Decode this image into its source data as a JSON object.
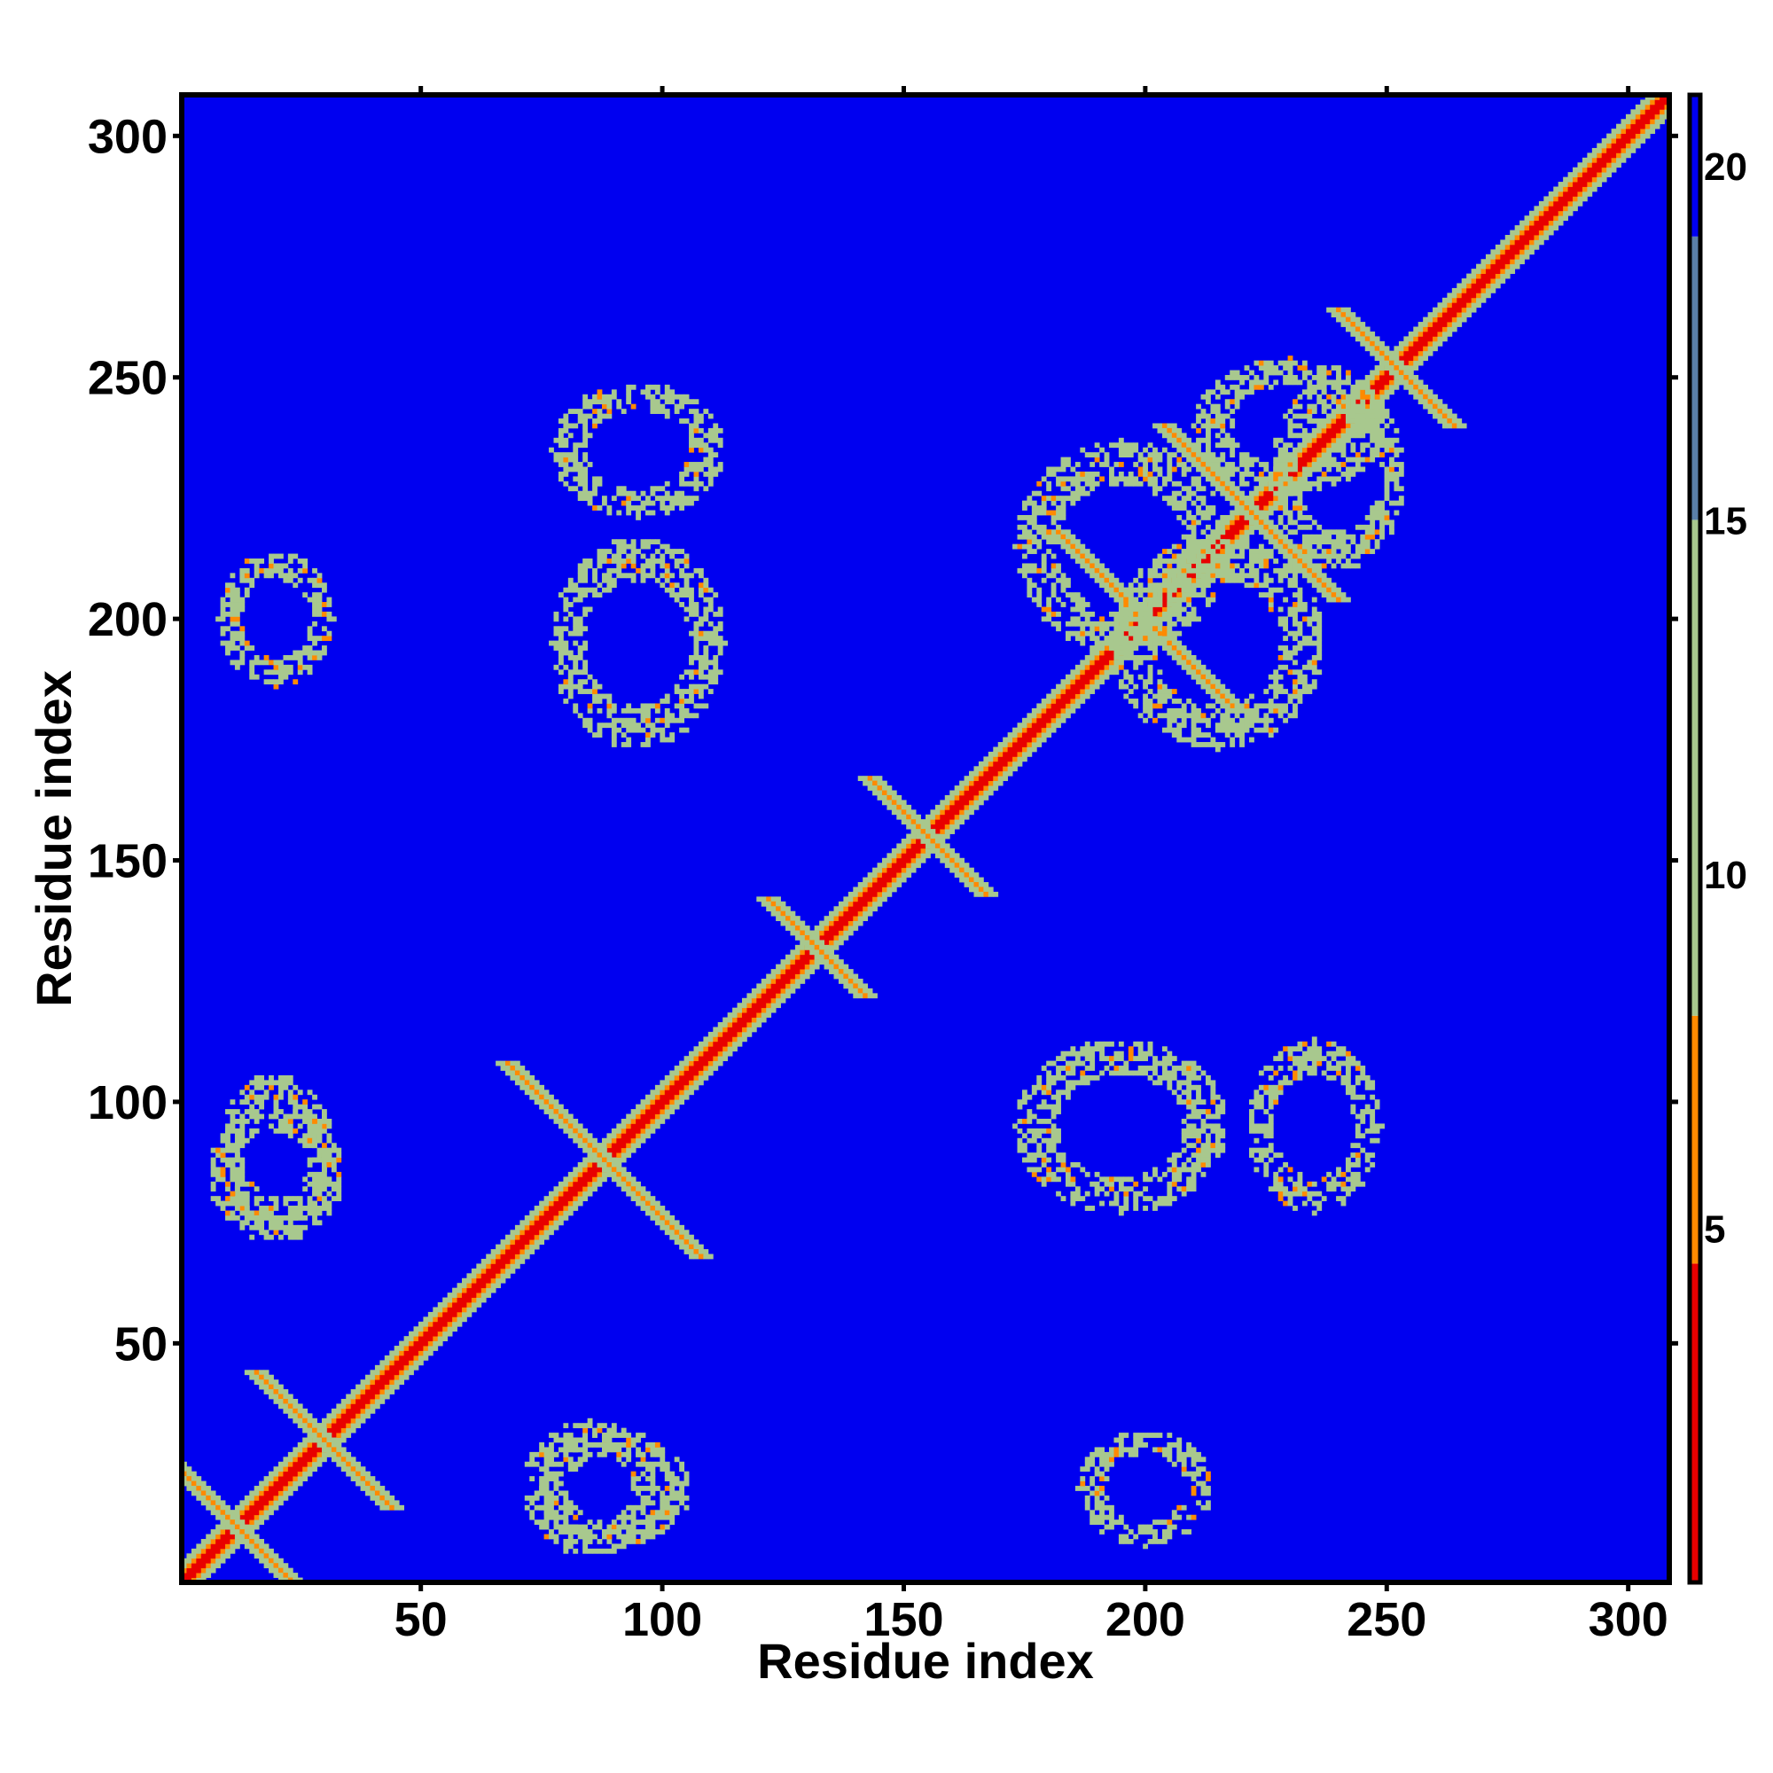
{
  "chart_data": {
    "type": "heatmap",
    "title": "",
    "xlabel": "Residue index",
    "ylabel": "Residue index",
    "xlim": [
      1,
      308
    ],
    "ylim": [
      1,
      308
    ],
    "xticks": [
      50,
      100,
      150,
      200,
      250,
      300
    ],
    "yticks": [
      50,
      100,
      150,
      200,
      250,
      300
    ],
    "grid": false,
    "colorbar": {
      "range": [
        0,
        21
      ],
      "ticks": [
        5,
        10,
        15,
        20
      ],
      "colors": {
        "close": "#e80000",
        "near": "#ff8a00",
        "mid": "#a8c88e",
        "far": "#0000f0"
      }
    },
    "contact_features": [
      {
        "kind": "diagonal",
        "from": 1,
        "to": 308
      },
      {
        "kind": "antiparallel",
        "center": [
          12,
          12
        ],
        "half_length": 14
      },
      {
        "kind": "antiparallel",
        "center": [
          30,
          30
        ],
        "half_length": 14
      },
      {
        "kind": "antiparallel",
        "center": [
          88,
          88
        ],
        "half_length": 20
      },
      {
        "kind": "antiparallel",
        "center": [
          132,
          132
        ],
        "half_length": 10
      },
      {
        "kind": "antiparallel",
        "center": [
          155,
          155
        ],
        "half_length": 12
      },
      {
        "kind": "antiparallel",
        "center": [
          200,
          200
        ],
        "half_length": 18
      },
      {
        "kind": "antiparallel",
        "center": [
          222,
          222
        ],
        "half_length": 18
      },
      {
        "kind": "antiparallel",
        "center": [
          252,
          252
        ],
        "half_length": 12
      },
      {
        "kind": "blob",
        "center": [
          90,
          20
        ],
        "rx": 16,
        "ry": 12
      },
      {
        "kind": "blob",
        "center": [
          20,
          90
        ],
        "rx": 12,
        "ry": 16
      },
      {
        "kind": "blob",
        "center": [
          20,
          85
        ],
        "rx": 14,
        "ry": 14
      },
      {
        "kind": "blob",
        "center": [
          85,
          20
        ],
        "rx": 14,
        "ry": 14
      },
      {
        "kind": "blob",
        "center": [
          95,
          195
        ],
        "rx": 18,
        "ry": 22
      },
      {
        "kind": "blob",
        "center": [
          95,
          235
        ],
        "rx": 18,
        "ry": 14
      },
      {
        "kind": "blob",
        "center": [
          195,
          95
        ],
        "rx": 22,
        "ry": 18
      },
      {
        "kind": "blob",
        "center": [
          235,
          95
        ],
        "rx": 14,
        "ry": 18
      },
      {
        "kind": "blob",
        "center": [
          20,
          200
        ],
        "rx": 12,
        "ry": 14
      },
      {
        "kind": "blob",
        "center": [
          200,
          20
        ],
        "rx": 14,
        "ry": 12
      },
      {
        "kind": "blob",
        "center": [
          195,
          215
        ],
        "rx": 22,
        "ry": 22
      },
      {
        "kind": "blob",
        "center": [
          215,
          195
        ],
        "rx": 22,
        "ry": 22
      },
      {
        "kind": "blob",
        "center": [
          230,
          240
        ],
        "rx": 20,
        "ry": 14
      },
      {
        "kind": "blob",
        "center": [
          240,
          230
        ],
        "rx": 14,
        "ry": 20
      }
    ]
  }
}
